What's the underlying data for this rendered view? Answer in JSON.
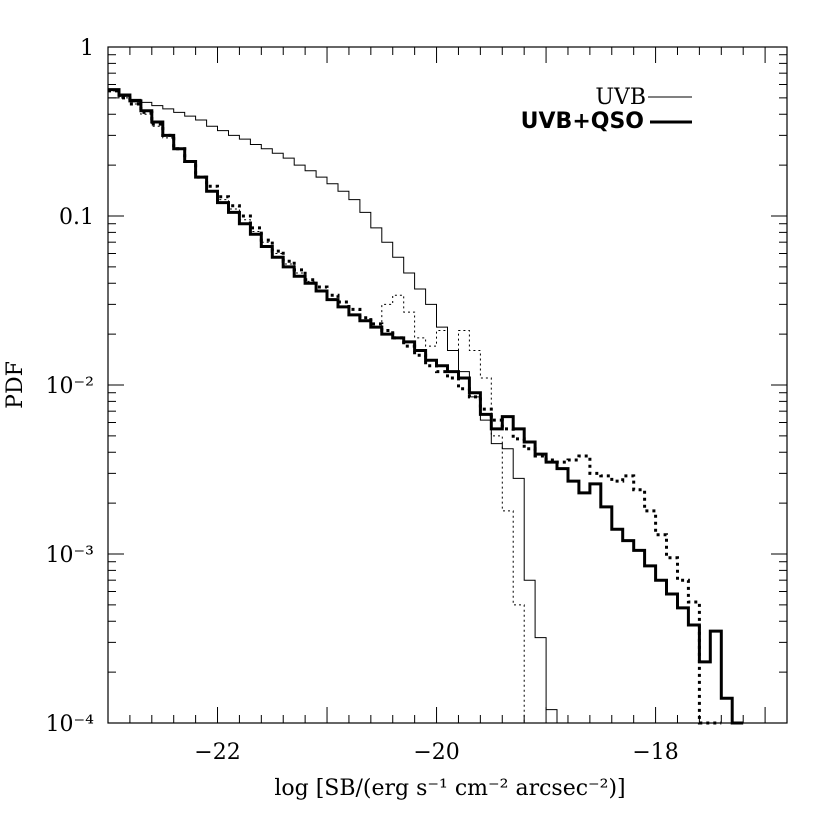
{
  "chart_data": {
    "type": "line",
    "xlabel": "log [SB/(erg s⁻¹ cm⁻² arcsec⁻²)]",
    "ylabel": "PDF",
    "xlim": [
      -23,
      -16.8
    ],
    "ylim": [
      0.0001,
      1
    ],
    "yscale": "log",
    "x_ticks": [
      {
        "value": -22,
        "label": "−22"
      },
      {
        "value": -20,
        "label": "−20"
      },
      {
        "value": -18,
        "label": "−18"
      }
    ],
    "y_ticks": [
      {
        "value": 1,
        "label": "1"
      },
      {
        "value": 0.1,
        "label": "0.1"
      },
      {
        "value": 0.01,
        "label": "10⁻²"
      },
      {
        "value": 0.001,
        "label": "10⁻³"
      },
      {
        "value": 0.0001,
        "label": "10⁻⁴"
      }
    ],
    "legend": {
      "placement": "top-right",
      "entries": [
        {
          "label": "UVB",
          "style": "thin"
        },
        {
          "label": "UVB+QSO",
          "style": "thick"
        }
      ]
    },
    "series": [
      {
        "name": "UVB",
        "style": "thin-solid",
        "x": [
          -23.0,
          -22.9,
          -22.8,
          -22.7,
          -22.6,
          -22.5,
          -22.4,
          -22.3,
          -22.2,
          -22.1,
          -22.0,
          -21.9,
          -21.8,
          -21.7,
          -21.6,
          -21.5,
          -21.4,
          -21.3,
          -21.2,
          -21.1,
          -21.0,
          -20.9,
          -20.8,
          -20.7,
          -20.6,
          -20.5,
          -20.4,
          -20.3,
          -20.2,
          -20.1,
          -20.0,
          -19.9,
          -19.8,
          -19.7,
          -19.6,
          -19.5,
          -19.4,
          -19.3,
          -19.2,
          -19.1,
          -19.0,
          -18.9,
          -18.8
        ],
        "y": [
          0.5,
          0.51,
          0.49,
          0.47,
          0.45,
          0.43,
          0.41,
          0.39,
          0.37,
          0.34,
          0.32,
          0.3,
          0.285,
          0.265,
          0.25,
          0.235,
          0.22,
          0.2,
          0.185,
          0.17,
          0.155,
          0.14,
          0.125,
          0.105,
          0.085,
          0.07,
          0.057,
          0.046,
          0.037,
          0.03,
          0.022,
          0.016,
          0.012,
          0.0085,
          0.0062,
          0.0045,
          0.0042,
          0.0028,
          0.0007,
          0.00032,
          0.00012,
          0.0001,
          0.0001
        ]
      },
      {
        "name": "",
        "style": "thin-dotted",
        "x": [
          -23.0,
          -22.9,
          -22.8,
          -22.7,
          -22.6,
          -22.5,
          -22.4,
          -22.3,
          -22.2,
          -22.1,
          -22.0,
          -21.9,
          -21.8,
          -21.7,
          -21.6,
          -21.5,
          -21.4,
          -21.3,
          -21.2,
          -21.1,
          -21.0,
          -20.9,
          -20.8,
          -20.7,
          -20.6,
          -20.5,
          -20.4,
          -20.3,
          -20.2,
          -20.1,
          -20.0,
          -19.9,
          -19.8,
          -19.7,
          -19.6,
          -19.5,
          -19.4,
          -19.3,
          -19.2
        ],
        "y": [
          0.55,
          0.5,
          0.46,
          0.4,
          0.34,
          0.29,
          0.25,
          0.21,
          0.17,
          0.14,
          0.125,
          0.11,
          0.095,
          0.081,
          0.07,
          0.06,
          0.052,
          0.046,
          0.041,
          0.036,
          0.032,
          0.029,
          0.026,
          0.024,
          0.022,
          0.03,
          0.034,
          0.027,
          0.019,
          0.017,
          0.021,
          0.016,
          0.021,
          0.016,
          0.011,
          0.005,
          0.0018,
          0.0005,
          0.0001
        ]
      },
      {
        "name": "UVB+QSO",
        "style": "thick-solid",
        "x": [
          -23.0,
          -22.9,
          -22.8,
          -22.7,
          -22.6,
          -22.5,
          -22.4,
          -22.3,
          -22.2,
          -22.1,
          -22.0,
          -21.9,
          -21.8,
          -21.7,
          -21.6,
          -21.5,
          -21.4,
          -21.3,
          -21.2,
          -21.1,
          -21.0,
          -20.9,
          -20.8,
          -20.7,
          -20.6,
          -20.5,
          -20.4,
          -20.3,
          -20.2,
          -20.1,
          -20.0,
          -19.9,
          -19.8,
          -19.7,
          -19.6,
          -19.5,
          -19.4,
          -19.3,
          -19.2,
          -19.1,
          -19.0,
          -18.9,
          -18.8,
          -18.7,
          -18.6,
          -18.5,
          -18.4,
          -18.3,
          -18.2,
          -18.1,
          -18.0,
          -17.9,
          -17.8,
          -17.7,
          -17.6,
          -17.5,
          -17.4,
          -17.3
        ],
        "y": [
          0.56,
          0.52,
          0.48,
          0.42,
          0.36,
          0.3,
          0.25,
          0.21,
          0.17,
          0.14,
          0.12,
          0.105,
          0.09,
          0.078,
          0.066,
          0.057,
          0.05,
          0.044,
          0.04,
          0.036,
          0.032,
          0.029,
          0.026,
          0.024,
          0.022,
          0.02,
          0.019,
          0.018,
          0.016,
          0.014,
          0.013,
          0.012,
          0.011,
          0.009,
          0.0067,
          0.0055,
          0.0065,
          0.0055,
          0.0046,
          0.0039,
          0.0035,
          0.0032,
          0.0027,
          0.0023,
          0.0026,
          0.0019,
          0.0014,
          0.0012,
          0.00105,
          0.00085,
          0.0007,
          0.00058,
          0.00048,
          0.00038,
          0.00023,
          0.00035,
          0.00014,
          0.0001
        ]
      },
      {
        "name": "",
        "style": "thick-dotted",
        "x": [
          -23.0,
          -22.9,
          -22.8,
          -22.7,
          -22.6,
          -22.5,
          -22.4,
          -22.3,
          -22.2,
          -22.1,
          -22.0,
          -21.9,
          -21.8,
          -21.7,
          -21.6,
          -21.5,
          -21.4,
          -21.3,
          -21.2,
          -21.1,
          -21.0,
          -20.9,
          -20.8,
          -20.7,
          -20.6,
          -20.5,
          -20.4,
          -20.3,
          -20.2,
          -20.1,
          -20.0,
          -19.9,
          -19.8,
          -19.7,
          -19.6,
          -19.5,
          -19.4,
          -19.3,
          -19.2,
          -19.1,
          -19.0,
          -18.9,
          -18.8,
          -18.7,
          -18.6,
          -18.5,
          -18.4,
          -18.3,
          -18.2,
          -18.1,
          -18.0,
          -17.9,
          -17.8,
          -17.7,
          -17.6,
          -17.5
        ],
        "y": [
          0.55,
          0.5,
          0.46,
          0.41,
          0.35,
          0.3,
          0.25,
          0.21,
          0.17,
          0.15,
          0.13,
          0.115,
          0.1,
          0.085,
          0.072,
          0.062,
          0.054,
          0.048,
          0.042,
          0.038,
          0.034,
          0.031,
          0.028,
          0.025,
          0.023,
          0.021,
          0.019,
          0.017,
          0.015,
          0.013,
          0.012,
          0.011,
          0.0095,
          0.0085,
          0.0072,
          0.0062,
          0.0055,
          0.0048,
          0.0042,
          0.0038,
          0.0036,
          0.0035,
          0.0036,
          0.0038,
          0.003,
          0.0029,
          0.0027,
          0.0029,
          0.0024,
          0.0018,
          0.0013,
          0.00095,
          0.0007,
          0.00052,
          0.0001,
          0.0001
        ]
      }
    ]
  }
}
